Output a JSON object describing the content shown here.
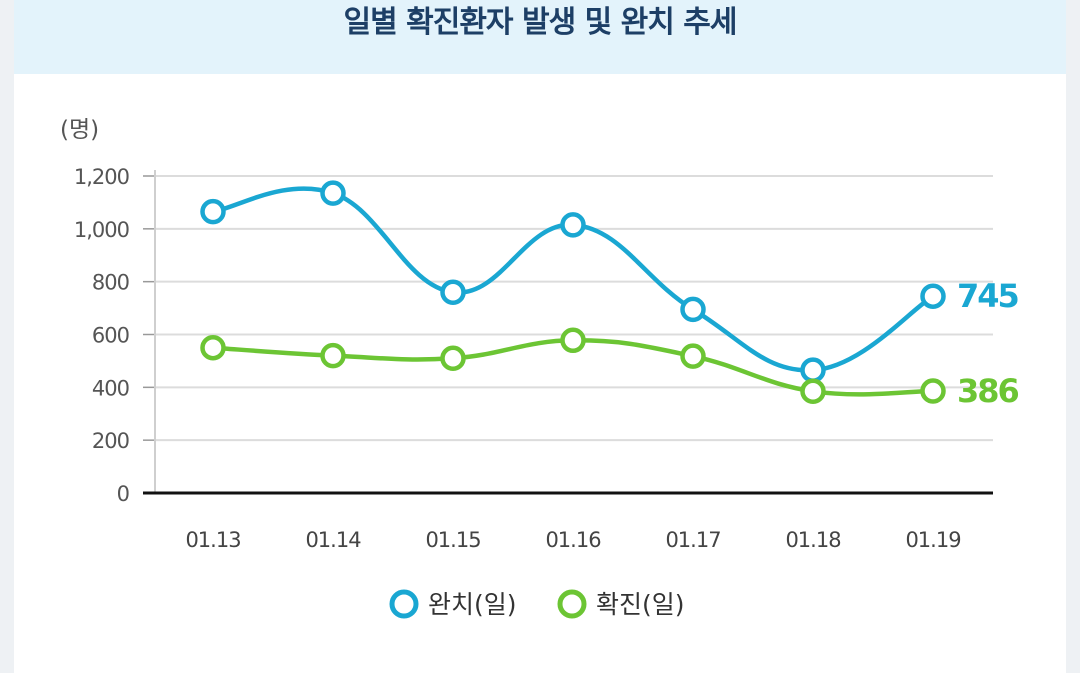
{
  "chart_data": {
    "type": "line",
    "title": "일별 확진환자 발생 및 완치 추세",
    "unit_label": "(명)",
    "categories": [
      "01.13",
      "01.14",
      "01.15",
      "01.16",
      "01.17",
      "01.18",
      "01.19"
    ],
    "ylim": [
      0,
      1200
    ],
    "yticks": [
      "0",
      "200",
      "400",
      "600",
      "800",
      "1,000",
      "1,200"
    ],
    "ytick_values": [
      0,
      200,
      400,
      600,
      800,
      1000,
      1200
    ],
    "grid": true,
    "legend_position": "bottom-center",
    "series": [
      {
        "name": "완치(일)",
        "color": "#1aa7d2",
        "values": [
          1065,
          1135,
          760,
          1015,
          695,
          465,
          745
        ],
        "end_label": "745"
      },
      {
        "name": "확진(일)",
        "color": "#6cc534",
        "values": [
          550,
          520,
          510,
          578,
          518,
          385,
          386
        ],
        "end_label": "386"
      }
    ]
  }
}
